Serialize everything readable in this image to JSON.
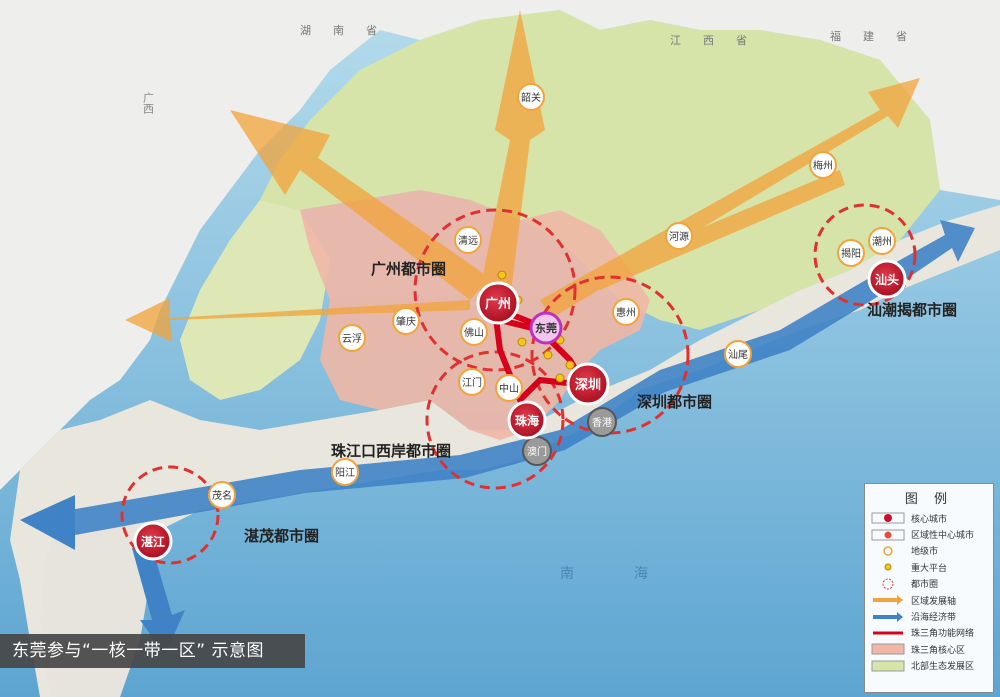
{
  "caption": "东莞参与“一核一带一区” 示意图",
  "legend": {
    "title": "图 例",
    "items": [
      {
        "label": "核心城市",
        "symbol": "core-city"
      },
      {
        "label": "区域性中心城市",
        "symbol": "regional-center"
      },
      {
        "label": "地级市",
        "symbol": "prefecture-city"
      },
      {
        "label": "重大平台",
        "symbol": "major-platform"
      },
      {
        "label": "都市圈",
        "symbol": "metro-circle"
      },
      {
        "label": "区域发展轴",
        "symbol": "dev-axis"
      },
      {
        "label": "沿海经济带",
        "symbol": "coastal-belt"
      },
      {
        "label": "珠三角功能网络",
        "symbol": "prd-network"
      },
      {
        "label": "珠三角核心区",
        "symbol": "prd-core"
      },
      {
        "label": "北部生态发展区",
        "symbol": "north-eco"
      }
    ]
  },
  "metro_circles": {
    "guangzhou": "广州都市圈",
    "shenzhen": "深圳都市圈",
    "pearl_west": "珠江口西岸都市圈",
    "shantou": "汕潮揭都市圈",
    "zhanjiang": "湛茂都市圈"
  },
  "core_cities": {
    "guangzhou": "广州",
    "shenzhen": "深圳",
    "zhuhai": "珠海",
    "shantou": "汕头",
    "zhanjiang": "湛江",
    "dongguan": "东莞"
  },
  "cities": {
    "shaoguan": "韶关",
    "qingyuan": "清远",
    "heyuan": "河源",
    "meizhou": "梅州",
    "chaozhou": "潮州",
    "jieyang": "揭阳",
    "shanwei": "汕尾",
    "huizhou": "惠州",
    "zhaoqing": "肇庆",
    "yunfu": "云浮",
    "foshan": "佛山",
    "jiangmen": "江门",
    "zhongshan": "中山",
    "yangjiang": "阳江",
    "maoming": "茂名",
    "hongkong": "香港",
    "macau": "澳门"
  },
  "regions": {
    "guangxi": "广西",
    "jiangxi": "江西省",
    "hunan": "湖南省",
    "fujian": "福建省",
    "south_sea": "南海"
  },
  "colors": {
    "sea": "#7fb8d8",
    "north_land": "#d5e3a8",
    "prd_core": "#f0b7a6",
    "coastal_land": "#e7e4dc",
    "outer_land": "#eeeeec",
    "axis_orange": "#f2a33a",
    "coastal_blue": "#3f83c6",
    "core_red": "#c8102e",
    "circle_dash": "#e03131"
  }
}
